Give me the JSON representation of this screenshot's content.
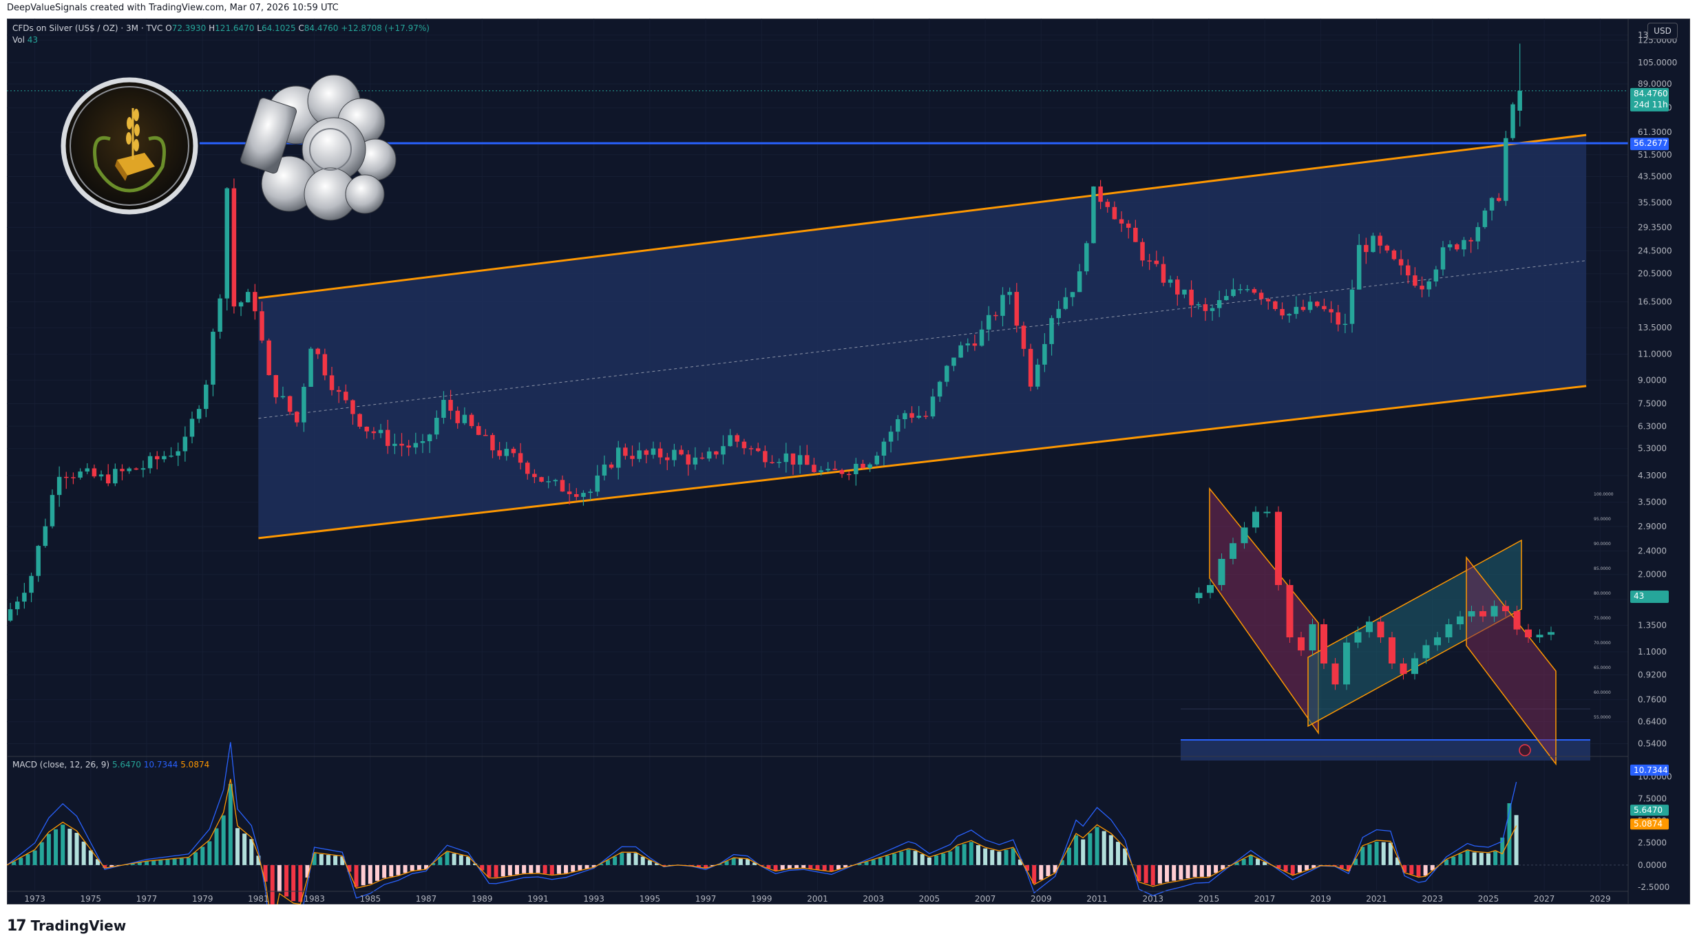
{
  "header": {
    "credit": "DeepValueSignals created with TradingView.com, Mar 07, 2026 10:59 UTC",
    "symbol": "CFDs on Silver (US$ / OZ) · 3M · TVC",
    "o_label": "O",
    "o_value": "72.3930",
    "h_label": "H",
    "h_value": "121.6470",
    "l_label": "L",
    "l_value": "64.1025",
    "c_label": "C",
    "c_value": "84.4760",
    "change": "+12.8708 (+17.97%)",
    "vol_label": "Vol",
    "vol_value": "43",
    "currency_button": "USD"
  },
  "macd": {
    "label": "MACD (close, 12, 26, 9)",
    "hist_value": "5.6470",
    "macd_value": "10.7344",
    "signal_value": "5.0874",
    "axis_ticks": [
      "10.0000",
      "7.5000",
      "5.0000",
      "2.5000",
      "0.0000",
      "-2.5000"
    ]
  },
  "colors": {
    "bg": "#0f1629",
    "up": "#26a69a",
    "down": "#f23645",
    "channel": "#ff9800",
    "channel_fill": "#1d2f5c",
    "hline": "#2962ff",
    "macd": "#2962ff",
    "signal": "#ff9800"
  },
  "price_badges": {
    "last": "84.4760",
    "countdown": "24d 11h",
    "hline": "56.2677",
    "vol": "43"
  },
  "inset": {
    "axis_ticks": [
      "100.0000",
      "95.0000",
      "90.0000",
      "85.0000",
      "80.0000",
      "75.0000",
      "70.0000",
      "65.0000",
      "60.0000",
      "55.0000"
    ]
  },
  "footer": {
    "brand": "TradingView",
    "logo_text": "17"
  },
  "chart_data": {
    "type": "candlestick",
    "title": "CFDs on Silver (US$ / OZ) · 3M · TVC",
    "y_scale": "log",
    "y_ticks": [
      "130.0000",
      "125.0000",
      "105.0000",
      "89.0000",
      "74.0000",
      "61.3000",
      "51.5000",
      "43.5000",
      "35.5000",
      "29.3500",
      "24.5000",
      "20.5000",
      "16.5000",
      "13.5000",
      "11.0000",
      "9.0000",
      "7.5000",
      "6.3000",
      "5.3000",
      "4.3000",
      "3.5000",
      "2.9000",
      "2.4000",
      "2.0000",
      "1.6500",
      "1.3500",
      "1.1000",
      "0.9200",
      "0.7600",
      "0.6400",
      "0.5400"
    ],
    "x_ticks": [
      "1973",
      "1975",
      "1977",
      "1979",
      "1981",
      "1983",
      "1985",
      "1987",
      "1989",
      "1991",
      "1993",
      "1995",
      "1997",
      "1999",
      "2001",
      "2003",
      "2005",
      "2007",
      "2009",
      "2011",
      "2013",
      "2015",
      "2017",
      "2019",
      "2021",
      "2023",
      "2025",
      "2027",
      "2029"
    ],
    "price_path": [
      [
        1972.0,
        1.4
      ],
      [
        1973.0,
        2.0
      ],
      [
        1974.0,
        4.5
      ],
      [
        1975.5,
        4.2
      ],
      [
        1977.0,
        4.6
      ],
      [
        1978.5,
        5.5
      ],
      [
        1979.25,
        9.0
      ],
      [
        1979.75,
        18.0
      ],
      [
        1980.0,
        40.0
      ],
      [
        1980.25,
        16.0
      ],
      [
        1980.75,
        17.0
      ],
      [
        1981.0,
        16.0
      ],
      [
        1981.5,
        9.0
      ],
      [
        1982.5,
        6.5
      ],
      [
        1983.0,
        12.0
      ],
      [
        1984.0,
        8.0
      ],
      [
        1985.0,
        6.2
      ],
      [
        1986.0,
        5.5
      ],
      [
        1987.0,
        5.3
      ],
      [
        1987.75,
        7.5
      ],
      [
        1988.5,
        6.5
      ],
      [
        1989.5,
        5.3
      ],
      [
        1990.5,
        4.8
      ],
      [
        1991.5,
        4.0
      ],
      [
        1993.0,
        3.8
      ],
      [
        1994.0,
        5.2
      ],
      [
        1995.0,
        5.0
      ],
      [
        1996.0,
        5.1
      ],
      [
        1997.0,
        4.7
      ],
      [
        1998.0,
        5.8
      ],
      [
        1999.0,
        5.1
      ],
      [
        2000.0,
        5.0
      ],
      [
        2001.5,
        4.3
      ],
      [
        2003.0,
        4.9
      ],
      [
        2004.25,
        7.0
      ],
      [
        2005.0,
        6.8
      ],
      [
        2006.0,
        11.0
      ],
      [
        2007.0,
        13.0
      ],
      [
        2008.0,
        18.0
      ],
      [
        2008.75,
        9.0
      ],
      [
        2009.5,
        15.0
      ],
      [
        2010.5,
        20.0
      ],
      [
        2011.0,
        38.0
      ],
      [
        2011.5,
        36.0
      ],
      [
        2012.0,
        30.0
      ],
      [
        2013.0,
        22.0
      ],
      [
        2014.0,
        18.0
      ],
      [
        2015.0,
        15.0
      ],
      [
        2016.5,
        19.0
      ],
      [
        2018.0,
        15.0
      ],
      [
        2019.0,
        16.0
      ],
      [
        2020.0,
        13.5
      ],
      [
        2020.5,
        25.0
      ],
      [
        2021.0,
        26.0
      ],
      [
        2022.0,
        21.0
      ],
      [
        2022.75,
        19.0
      ],
      [
        2023.5,
        24.0
      ],
      [
        2024.5,
        28.0
      ],
      [
        2025.0,
        32.0
      ],
      [
        2025.5,
        38.0
      ],
      [
        2025.75,
        58.0
      ],
      [
        2026.0,
        72.4
      ],
      [
        2026.1,
        84.476
      ]
    ],
    "channel_upper": [
      [
        1981.0,
        17.0
      ],
      [
        2028.5,
        60.0
      ]
    ],
    "channel_lower": [
      [
        1981.0,
        2.65
      ],
      [
        2028.5,
        8.6
      ]
    ],
    "channel_mid": [
      [
        1981.0,
        6.7
      ],
      [
        2028.5,
        22.7
      ]
    ],
    "horizontal_line": 56.2677,
    "last_price": 84.476,
    "last_ohlc": {
      "open": 72.393,
      "high": 121.647,
      "low": 64.1025,
      "close": 84.476
    },
    "volume": 43,
    "macd": {
      "fast": 12,
      "slow": 26,
      "signal": 9,
      "macd": 10.7344,
      "signal_value": 5.0874,
      "histogram": 5.647,
      "ylim": [
        -2.5,
        10.0
      ]
    }
  }
}
